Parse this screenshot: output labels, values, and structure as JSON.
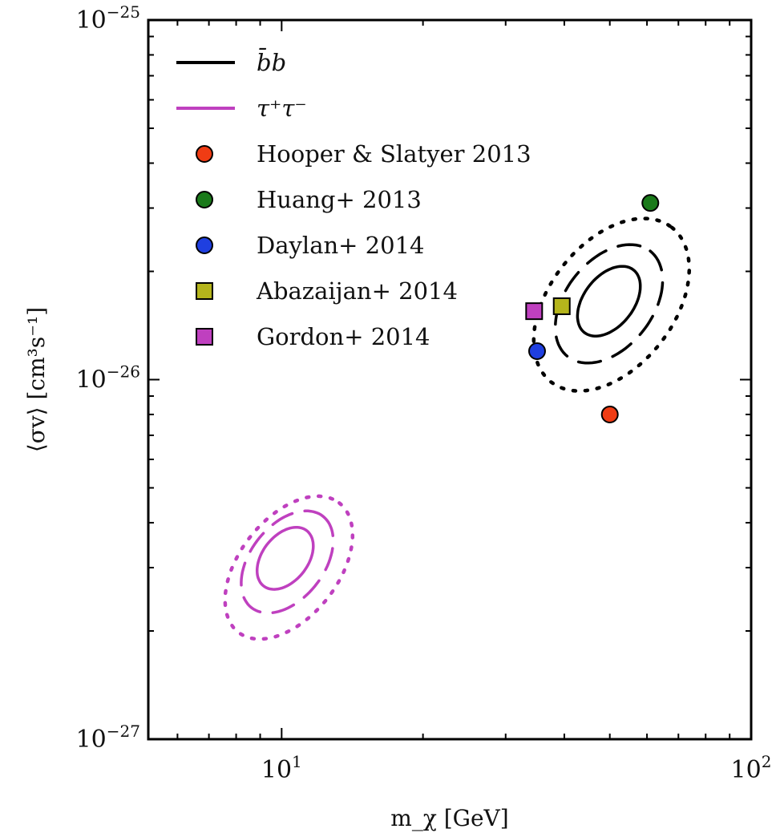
{
  "chart_data": {
    "type": "scatter",
    "xlabel": "m_χ [GeV]",
    "ylabel": "⟨σv⟩ [cm³s⁻¹]",
    "xscale": "log",
    "yscale": "log",
    "xlim": [
      5.2,
      100
    ],
    "ylim": [
      1e-27,
      1e-25
    ],
    "x_ticks": [
      {
        "value": 10,
        "base": "10",
        "exp": "1"
      },
      {
        "value": 100,
        "base": "10",
        "exp": "2"
      }
    ],
    "y_ticks": [
      {
        "value": 1e-27,
        "base": "10",
        "exp": "−27"
      },
      {
        "value": 1e-26,
        "base": "10",
        "exp": "−26"
      },
      {
        "value": 1e-25,
        "base": "10",
        "exp": "−25"
      }
    ],
    "grid": false,
    "legend_position": "top-left",
    "contours": [
      {
        "name": "b̄b",
        "color": "#000000",
        "center": {
          "x": 50,
          "y": 1.65e-26
        },
        "levels": [
          {
            "style": "solid",
            "x_range": [
              42,
              59
            ],
            "y_range": [
              1.3e-26,
              2.1e-26
            ]
          },
          {
            "style": "dashed",
            "x_range": [
              37,
              67
            ],
            "y_range": [
              1.1e-26,
              2.4e-26
            ]
          },
          {
            "style": "dotted",
            "x_range": [
              33,
              77
            ],
            "y_range": [
              9e-27,
              2.9e-26
            ]
          }
        ]
      },
      {
        "name": "τ⁺τ⁻",
        "color": "#bf40bf",
        "center": {
          "x": 10.2,
          "y": 3.2e-27
        },
        "levels": [
          {
            "style": "solid",
            "x_range": [
              8.7,
              11.9
            ],
            "y_range": [
              2.6e-27,
              3.9e-27
            ]
          },
          {
            "style": "dashed",
            "x_range": [
              8.0,
              13.2
            ],
            "y_range": [
              2.2e-27,
              4.4e-27
            ]
          },
          {
            "style": "dotted",
            "x_range": [
              7.4,
              14.5
            ],
            "y_range": [
              1.8e-27,
              5e-27
            ]
          }
        ]
      }
    ],
    "series": [
      {
        "name": "Hooper & Slatyer 2013",
        "marker": "circle",
        "color": "#f03c14",
        "x": 50,
        "y": 8e-27
      },
      {
        "name": "Huang+ 2013",
        "marker": "circle",
        "color": "#1a7a1a",
        "x": 61,
        "y": 3.1e-26
      },
      {
        "name": "Daylan+ 2014",
        "marker": "circle",
        "color": "#1f3fe0",
        "x": 35,
        "y": 1.2e-26
      },
      {
        "name": "Abazaijan+ 2014",
        "marker": "square",
        "color": "#b5b51c",
        "x": 39.5,
        "y": 1.6e-26
      },
      {
        "name": "Gordon+ 2014",
        "marker": "square",
        "color": "#bf40bf",
        "x": 34.5,
        "y": 1.55e-26
      }
    ]
  }
}
